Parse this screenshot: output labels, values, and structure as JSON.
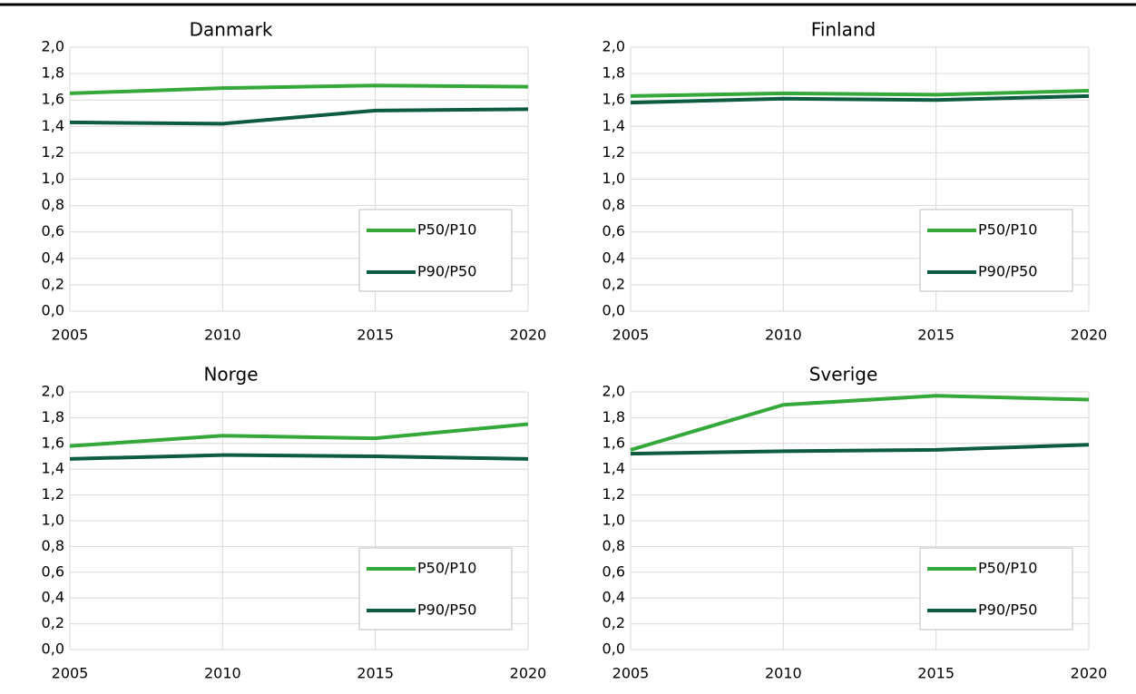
{
  "chart_data": [
    {
      "type": "line",
      "title": "Danmark",
      "x": [
        2005,
        2010,
        2015,
        2020
      ],
      "xlim": [
        2005,
        2020
      ],
      "xticks": [
        2005,
        2010,
        2015,
        2020
      ],
      "ylim": [
        0,
        2
      ],
      "yticks": [
        {
          "value": 0,
          "label": "0,0"
        },
        {
          "value": 0.2,
          "label": "0,2"
        },
        {
          "value": 0.4,
          "label": "0,4"
        },
        {
          "value": 0.6,
          "label": "0,6"
        },
        {
          "value": 0.8,
          "label": "0,8"
        },
        {
          "value": 1.0,
          "label": "1,0"
        },
        {
          "value": 1.2,
          "label": "1,2"
        },
        {
          "value": 1.4,
          "label": "1,4"
        },
        {
          "value": 1.6,
          "label": "1,6"
        },
        {
          "value": 1.8,
          "label": "1,8"
        },
        {
          "value": 2.0,
          "label": "2,0"
        }
      ],
      "grid": true,
      "legend": "lower right",
      "series": [
        {
          "name": "P50/P10",
          "color": "#35a83a",
          "values": [
            1.65,
            1.69,
            1.71,
            1.7
          ]
        },
        {
          "name": "P90/P50",
          "color": "#0d5c40",
          "values": [
            1.43,
            1.42,
            1.52,
            1.53
          ]
        }
      ]
    },
    {
      "type": "line",
      "title": "Finland",
      "x": [
        2005,
        2010,
        2015,
        2020
      ],
      "xlim": [
        2005,
        2020
      ],
      "xticks": [
        2005,
        2010,
        2015,
        2020
      ],
      "ylim": [
        0,
        2
      ],
      "yticks": [
        {
          "value": 0,
          "label": "0,0"
        },
        {
          "value": 0.2,
          "label": "0,2"
        },
        {
          "value": 0.4,
          "label": "0,4"
        },
        {
          "value": 0.6,
          "label": "0,6"
        },
        {
          "value": 0.8,
          "label": "0,8"
        },
        {
          "value": 1.0,
          "label": "1,0"
        },
        {
          "value": 1.2,
          "label": "1,2"
        },
        {
          "value": 1.4,
          "label": "1,4"
        },
        {
          "value": 1.6,
          "label": "1,6"
        },
        {
          "value": 1.8,
          "label": "1,8"
        },
        {
          "value": 2.0,
          "label": "2,0"
        }
      ],
      "grid": true,
      "legend": "lower right",
      "series": [
        {
          "name": "P50/P10",
          "color": "#35a83a",
          "values": [
            1.63,
            1.65,
            1.64,
            1.67
          ]
        },
        {
          "name": "P90/P50",
          "color": "#0d5c40",
          "values": [
            1.58,
            1.61,
            1.6,
            1.63
          ]
        }
      ]
    },
    {
      "type": "line",
      "title": "Norge",
      "x": [
        2005,
        2010,
        2015,
        2020
      ],
      "xlim": [
        2005,
        2020
      ],
      "xticks": [
        2005,
        2010,
        2015,
        2020
      ],
      "ylim": [
        0,
        2
      ],
      "yticks": [
        {
          "value": 0,
          "label": "0,0"
        },
        {
          "value": 0.2,
          "label": "0,2"
        },
        {
          "value": 0.4,
          "label": "0,4"
        },
        {
          "value": 0.6,
          "label": "0,6"
        },
        {
          "value": 0.8,
          "label": "0,8"
        },
        {
          "value": 1.0,
          "label": "1,0"
        },
        {
          "value": 1.2,
          "label": "1,2"
        },
        {
          "value": 1.4,
          "label": "1,4"
        },
        {
          "value": 1.6,
          "label": "1,6"
        },
        {
          "value": 1.8,
          "label": "1,8"
        },
        {
          "value": 2.0,
          "label": "2,0"
        }
      ],
      "grid": true,
      "legend": "lower right",
      "series": [
        {
          "name": "P50/P10",
          "color": "#35a83a",
          "values": [
            1.58,
            1.66,
            1.64,
            1.75
          ]
        },
        {
          "name": "P90/P50",
          "color": "#0d5c40",
          "values": [
            1.48,
            1.51,
            1.5,
            1.48
          ]
        }
      ]
    },
    {
      "type": "line",
      "title": "Sverige",
      "x": [
        2005,
        2010,
        2015,
        2020
      ],
      "xlim": [
        2005,
        2020
      ],
      "xticks": [
        2005,
        2010,
        2015,
        2020
      ],
      "ylim": [
        0,
        2
      ],
      "yticks": [
        {
          "value": 0,
          "label": "0,0"
        },
        {
          "value": 0.2,
          "label": "0,2"
        },
        {
          "value": 0.4,
          "label": "0,4"
        },
        {
          "value": 0.6,
          "label": "0,6"
        },
        {
          "value": 0.8,
          "label": "0,8"
        },
        {
          "value": 1.0,
          "label": "1,0"
        },
        {
          "value": 1.2,
          "label": "1,2"
        },
        {
          "value": 1.4,
          "label": "1,4"
        },
        {
          "value": 1.6,
          "label": "1,6"
        },
        {
          "value": 1.8,
          "label": "1,8"
        },
        {
          "value": 2.0,
          "label": "2,0"
        }
      ],
      "grid": true,
      "legend": "lower right",
      "series": [
        {
          "name": "P50/P10",
          "color": "#35a83a",
          "values": [
            1.55,
            1.9,
            1.97,
            1.94
          ]
        },
        {
          "name": "P90/P50",
          "color": "#0d5c40",
          "values": [
            1.52,
            1.54,
            1.55,
            1.59
          ]
        }
      ]
    }
  ]
}
